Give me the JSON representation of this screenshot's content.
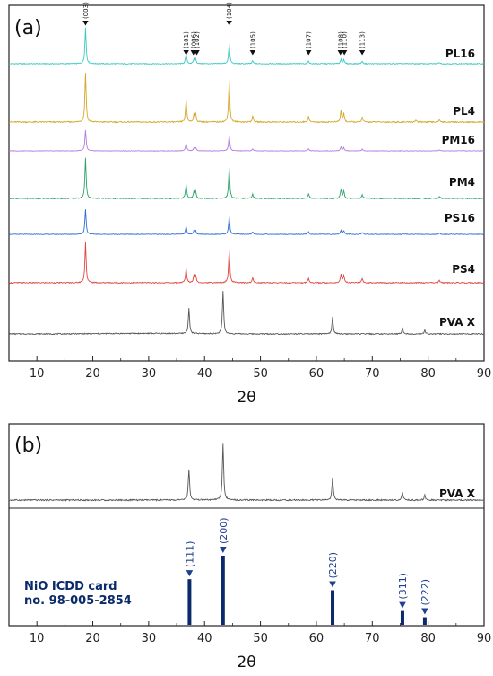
{
  "chart_data": [
    {
      "type": "line",
      "panel_label": "(a)",
      "xlabel": "2θ",
      "xlim": [
        5,
        90
      ],
      "x_ticks": [
        10,
        20,
        30,
        40,
        50,
        60,
        70,
        80,
        90
      ],
      "stacked": true,
      "series": [
        {
          "name": "PL16",
          "color": "#3cc9c4",
          "peaks": [
            [
              18.7,
              1.0
            ],
            [
              36.7,
              0.28
            ],
            [
              38.1,
              0.12
            ],
            [
              38.4,
              0.12
            ],
            [
              44.4,
              0.55
            ],
            [
              48.6,
              0.08
            ],
            [
              58.6,
              0.08
            ],
            [
              64.4,
              0.12
            ],
            [
              64.9,
              0.1
            ],
            [
              68.2,
              0.07
            ],
            [
              82.0,
              0.04
            ]
          ]
        },
        {
          "name": "PL4",
          "color": "#d4a629",
          "peaks": [
            [
              18.7,
              1.0
            ],
            [
              36.7,
              0.45
            ],
            [
              38.1,
              0.15
            ],
            [
              38.4,
              0.15
            ],
            [
              44.4,
              0.85
            ],
            [
              48.6,
              0.12
            ],
            [
              58.6,
              0.12
            ],
            [
              64.4,
              0.22
            ],
            [
              64.9,
              0.18
            ],
            [
              68.2,
              0.1
            ],
            [
              77.8,
              0.05
            ],
            [
              82.0,
              0.06
            ]
          ]
        },
        {
          "name": "PM16",
          "color": "#b57be0",
          "peaks": [
            [
              18.7,
              1.0
            ],
            [
              36.7,
              0.35
            ],
            [
              38.1,
              0.14
            ],
            [
              38.4,
              0.14
            ],
            [
              44.4,
              0.75
            ],
            [
              48.6,
              0.1
            ],
            [
              58.6,
              0.1
            ],
            [
              64.4,
              0.18
            ],
            [
              64.9,
              0.15
            ],
            [
              68.2,
              0.08
            ],
            [
              82.0,
              0.05
            ]
          ]
        },
        {
          "name": "PM4",
          "color": "#2ea36b",
          "peaks": [
            [
              18.7,
              1.0
            ],
            [
              36.7,
              0.35
            ],
            [
              38.1,
              0.16
            ],
            [
              38.4,
              0.16
            ],
            [
              44.4,
              0.75
            ],
            [
              48.6,
              0.12
            ],
            [
              58.6,
              0.12
            ],
            [
              64.4,
              0.22
            ],
            [
              64.9,
              0.18
            ],
            [
              68.2,
              0.1
            ],
            [
              82.0,
              0.06
            ]
          ]
        },
        {
          "name": "PS16",
          "color": "#2d6fd6",
          "peaks": [
            [
              18.7,
              1.0
            ],
            [
              36.7,
              0.32
            ],
            [
              38.1,
              0.14
            ],
            [
              38.4,
              0.14
            ],
            [
              44.4,
              0.7
            ],
            [
              48.6,
              0.1
            ],
            [
              58.6,
              0.1
            ],
            [
              64.4,
              0.16
            ],
            [
              64.9,
              0.14
            ],
            [
              68.2,
              0.08
            ],
            [
              82.0,
              0.05
            ]
          ]
        },
        {
          "name": "PS4",
          "color": "#e0463f",
          "peaks": [
            [
              18.7,
              1.0
            ],
            [
              36.7,
              0.35
            ],
            [
              38.1,
              0.18
            ],
            [
              38.4,
              0.18
            ],
            [
              44.4,
              0.82
            ],
            [
              48.6,
              0.12
            ],
            [
              58.6,
              0.12
            ],
            [
              64.4,
              0.22
            ],
            [
              64.9,
              0.18
            ],
            [
              68.2,
              0.1
            ],
            [
              82.0,
              0.06
            ]
          ]
        },
        {
          "name": "PVA X",
          "color": "#555555",
          "peaks": [
            [
              37.2,
              0.6
            ],
            [
              43.3,
              1.0
            ],
            [
              62.9,
              0.4
            ],
            [
              75.4,
              0.14
            ],
            [
              79.4,
              0.09
            ]
          ]
        }
      ],
      "peak_markers": [
        {
          "x": 18.7,
          "label": "(003)"
        },
        {
          "x": 36.7,
          "label": "(101)"
        },
        {
          "x": 38.0,
          "label": "(006)"
        },
        {
          "x": 38.6,
          "label": "(102)"
        },
        {
          "x": 44.4,
          "label": "(104)"
        },
        {
          "x": 48.6,
          "label": "(105)"
        },
        {
          "x": 58.6,
          "label": "(107)"
        },
        {
          "x": 64.3,
          "label": "(108)"
        },
        {
          "x": 65.0,
          "label": "(110)"
        },
        {
          "x": 68.2,
          "label": "(113)"
        }
      ]
    },
    {
      "type": "line",
      "panel_label": "(b)",
      "xlabel": "2θ",
      "xlim": [
        5,
        90
      ],
      "x_ticks": [
        10,
        20,
        30,
        40,
        50,
        60,
        70,
        80,
        90
      ],
      "series": [
        {
          "name": "PVA X",
          "color": "#555555",
          "peaks": [
            [
              37.2,
              0.55
            ],
            [
              43.3,
              1.0
            ],
            [
              62.9,
              0.4
            ],
            [
              75.4,
              0.14
            ],
            [
              79.4,
              0.09
            ]
          ]
        }
      ],
      "reference": {
        "label_line1": "NiO ICDD card",
        "label_line2": "no. 98-005-2854",
        "color": "#0b2a6b",
        "sticks": [
          {
            "x": 37.3,
            "intensity": 0.66,
            "label": "(111)"
          },
          {
            "x": 43.3,
            "intensity": 1.0,
            "label": "(200)"
          },
          {
            "x": 62.9,
            "intensity": 0.5,
            "label": "(220)"
          },
          {
            "x": 75.4,
            "intensity": 0.2,
            "label": "(311)"
          },
          {
            "x": 79.4,
            "intensity": 0.11,
            "label": "(222)"
          }
        ]
      }
    }
  ]
}
